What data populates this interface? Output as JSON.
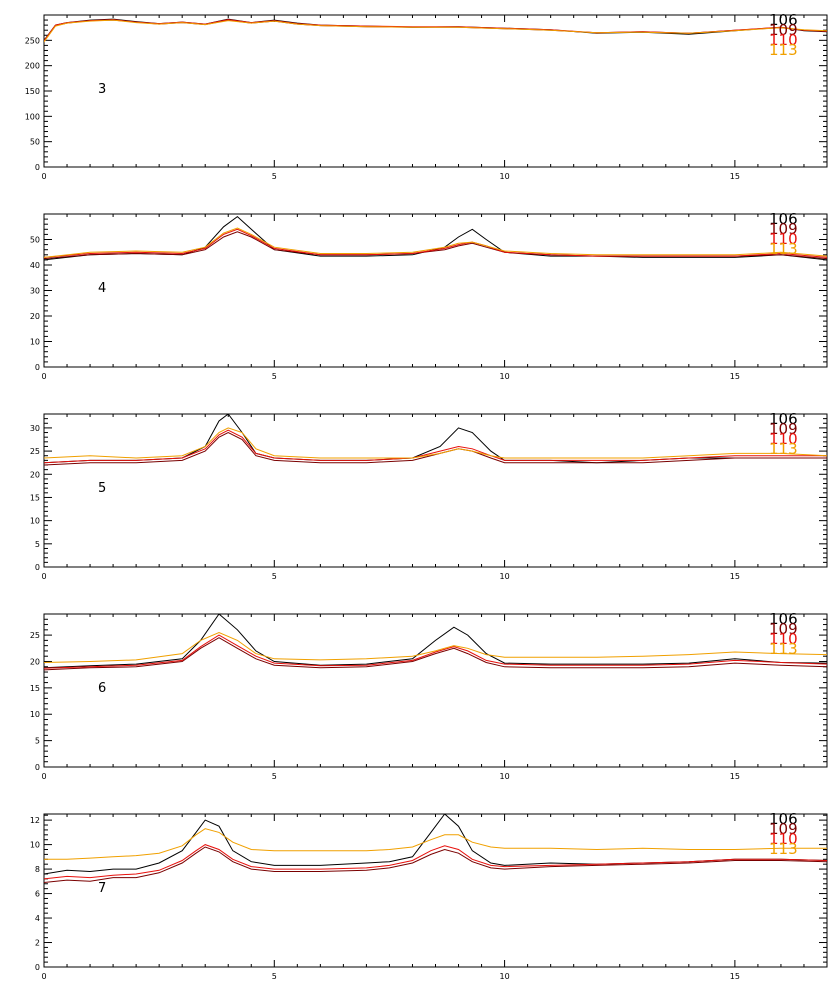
{
  "colors": {
    "background": "#ffffff",
    "axis": "#000000"
  },
  "chart_data": [
    {
      "type": "line",
      "panel_label": "3",
      "xlim": [
        0,
        17
      ],
      "ylim": [
        0,
        300
      ],
      "x_ticks": [
        0,
        5,
        10,
        15
      ],
      "y_ticks": [
        0,
        50,
        100,
        150,
        200,
        250
      ],
      "grid": false,
      "legend_position": "top-right",
      "x": [
        0,
        0.25,
        0.5,
        1,
        1.5,
        2,
        2.5,
        3,
        3.5,
        4,
        4.5,
        5,
        5.5,
        6,
        7,
        8,
        9,
        10,
        11,
        12,
        13,
        14,
        15,
        16,
        16.5,
        17
      ],
      "series": [
        {
          "name": "106",
          "color": "#000000",
          "values": [
            250,
            280,
            285,
            290,
            292,
            287,
            283,
            286,
            282,
            292,
            285,
            290,
            284,
            280,
            278,
            276,
            277,
            274,
            271,
            264,
            266,
            262,
            269,
            276,
            269,
            267
          ]
        },
        {
          "name": "109",
          "color": "#7a0000",
          "values": [
            248,
            279,
            284,
            289,
            290,
            286,
            282,
            285,
            281,
            290,
            284,
            288,
            282,
            279,
            277,
            276,
            276,
            273,
            270,
            265,
            267,
            264,
            270,
            275,
            270,
            268
          ]
        },
        {
          "name": "110",
          "color": "#e8100c",
          "values": [
            249,
            280,
            285,
            289,
            291,
            286,
            283,
            286,
            282,
            291,
            285,
            289,
            283,
            280,
            278,
            277,
            277,
            274,
            271,
            265,
            267,
            264,
            270,
            276,
            270,
            268
          ]
        },
        {
          "name": "113",
          "color": "#f0a000",
          "values": [
            247,
            278,
            284,
            288,
            290,
            285,
            282,
            285,
            281,
            289,
            284,
            288,
            282,
            279,
            277,
            276,
            276,
            273,
            270,
            265,
            266,
            264,
            269,
            275,
            271,
            269
          ]
        }
      ]
    },
    {
      "type": "line",
      "panel_label": "4",
      "xlim": [
        0,
        17
      ],
      "ylim": [
        0,
        60
      ],
      "x_ticks": [
        0,
        5,
        10,
        15
      ],
      "y_ticks": [
        0,
        10,
        20,
        30,
        40,
        50
      ],
      "grid": false,
      "legend_position": "top-right",
      "x": [
        0,
        1,
        2,
        3,
        3.5,
        3.9,
        4.2,
        4.5,
        5,
        6,
        7,
        8,
        8.7,
        9,
        9.3,
        9.6,
        10,
        11,
        12,
        13,
        14,
        15,
        16,
        17
      ],
      "series": [
        {
          "name": "106",
          "color": "#000000",
          "values": [
            42,
            44,
            44.5,
            44,
            47,
            55,
            59,
            54,
            46,
            43.5,
            43.5,
            44,
            47,
            51,
            54,
            50,
            45,
            43.5,
            43.5,
            43,
            43,
            43,
            44,
            42
          ]
        },
        {
          "name": "109",
          "color": "#7a0000",
          "values": [
            42.5,
            44,
            44.5,
            44,
            46,
            51,
            53,
            51,
            46,
            44,
            44,
            44.5,
            46,
            47.5,
            48.5,
            47,
            45,
            44,
            43.5,
            43.5,
            43.5,
            43.5,
            44,
            42.5
          ]
        },
        {
          "name": "110",
          "color": "#e8100c",
          "values": [
            43,
            44.5,
            45,
            44.5,
            46.5,
            52,
            54,
            51.5,
            46.5,
            44,
            44,
            44.5,
            46.5,
            48,
            49,
            47.5,
            45,
            44,
            43.5,
            43.5,
            43.5,
            43.5,
            44.5,
            43
          ]
        },
        {
          "name": "113",
          "color": "#f0a000",
          "values": [
            43,
            45,
            45.5,
            45,
            47,
            52.5,
            54.5,
            52,
            47,
            44.5,
            44.5,
            45,
            47,
            48.5,
            49,
            47.5,
            45.5,
            44.5,
            44,
            44,
            44,
            44,
            45,
            43.5
          ]
        }
      ]
    },
    {
      "type": "line",
      "panel_label": "5",
      "xlim": [
        0,
        17
      ],
      "ylim": [
        0,
        33
      ],
      "x_ticks": [
        0,
        5,
        10,
        15
      ],
      "y_ticks": [
        0,
        5,
        10,
        15,
        20,
        25,
        30
      ],
      "grid": false,
      "legend_position": "top-right",
      "x": [
        0,
        1,
        2,
        3,
        3.5,
        3.8,
        4,
        4.3,
        4.6,
        5,
        6,
        7,
        8,
        8.6,
        9,
        9.3,
        9.7,
        10,
        11,
        12,
        13,
        14,
        15,
        16,
        17
      ],
      "series": [
        {
          "name": "106",
          "color": "#000000",
          "values": [
            22.5,
            23,
            23,
            23.5,
            26,
            31.5,
            33,
            29,
            24.5,
            23.5,
            23,
            23,
            23.5,
            26,
            30,
            29,
            25,
            23,
            23,
            22.5,
            23,
            23.5,
            23.5,
            23.5,
            23.5
          ]
        },
        {
          "name": "109",
          "color": "#7a0000",
          "values": [
            22,
            22.5,
            22.5,
            23,
            25,
            28,
            29,
            27.5,
            24,
            23,
            22.5,
            22.5,
            23,
            24.5,
            25.5,
            25,
            23.5,
            22.5,
            22.5,
            22.5,
            22.5,
            23,
            23.5,
            23.5,
            23.5
          ]
        },
        {
          "name": "110",
          "color": "#e8100c",
          "values": [
            22.5,
            23,
            23,
            23.5,
            25.5,
            28.5,
            29.5,
            28,
            24.5,
            23.5,
            23,
            23,
            23.5,
            25,
            26,
            25.5,
            24,
            23,
            23,
            23,
            23,
            23.5,
            24,
            24,
            24
          ]
        },
        {
          "name": "113",
          "color": "#f0a000",
          "values": [
            23.5,
            24,
            23.5,
            24,
            26,
            29,
            30,
            29,
            25.5,
            24,
            23.5,
            23.5,
            23.5,
            24.5,
            25.5,
            25,
            24,
            23.5,
            23.5,
            23.5,
            23.5,
            24,
            24.5,
            24.5,
            24
          ]
        }
      ]
    },
    {
      "type": "line",
      "panel_label": "6",
      "xlim": [
        0,
        17
      ],
      "ylim": [
        0,
        29
      ],
      "x_ticks": [
        0,
        5,
        10,
        15
      ],
      "y_ticks": [
        0,
        5,
        10,
        15,
        20,
        25
      ],
      "grid": false,
      "legend_position": "top-right",
      "x": [
        0,
        1,
        2,
        3,
        3.4,
        3.8,
        4.2,
        4.6,
        5,
        6,
        7,
        8,
        8.5,
        8.9,
        9.2,
        9.6,
        10,
        11,
        12,
        13,
        14,
        15,
        16,
        17
      ],
      "series": [
        {
          "name": "106",
          "color": "#000000",
          "values": [
            18.8,
            19.2,
            19.5,
            20.5,
            24,
            29,
            26,
            22,
            20,
            19.3,
            19.5,
            20.5,
            24,
            26.5,
            25,
            21.5,
            19.7,
            19.5,
            19.5,
            19.5,
            19.7,
            20.5,
            19.8,
            19.7
          ]
        },
        {
          "name": "109",
          "color": "#7a0000",
          "values": [
            18.4,
            18.8,
            19,
            20,
            22.5,
            24.5,
            22.5,
            20.5,
            19.3,
            18.8,
            19,
            20,
            21.5,
            22.5,
            21.5,
            19.8,
            19,
            18.8,
            18.8,
            18.8,
            19,
            19.7,
            19.3,
            19
          ]
        },
        {
          "name": "110",
          "color": "#e8100c",
          "values": [
            18.7,
            19,
            19.3,
            20.2,
            22.8,
            25,
            23,
            21,
            19.7,
            19.2,
            19.3,
            20.2,
            21.8,
            22.8,
            22,
            20.2,
            19.5,
            19.3,
            19.3,
            19.3,
            19.5,
            20.2,
            19.8,
            19.5
          ]
        },
        {
          "name": "113",
          "color": "#f0a000",
          "values": [
            19.8,
            20,
            20.3,
            21.5,
            24,
            25.5,
            24,
            21.5,
            20.5,
            20.3,
            20.5,
            21,
            22,
            23,
            22.5,
            21.3,
            20.8,
            20.8,
            20.8,
            21,
            21.3,
            21.8,
            21.5,
            21.3
          ]
        }
      ]
    },
    {
      "type": "line",
      "panel_label": "7",
      "xlim": [
        0,
        17
      ],
      "ylim": [
        0,
        12.5
      ],
      "x_ticks": [
        0,
        5,
        10,
        15
      ],
      "y_ticks": [
        0,
        2,
        4,
        6,
        8,
        10,
        12
      ],
      "grid": false,
      "legend_position": "top-right",
      "x": [
        0,
        0.5,
        1,
        1.5,
        2,
        2.5,
        3,
        3.3,
        3.5,
        3.8,
        4.1,
        4.5,
        5,
        6,
        7,
        7.5,
        8,
        8.4,
        8.7,
        9,
        9.3,
        9.7,
        10,
        11,
        12,
        13,
        14,
        15,
        16,
        17
      ],
      "series": [
        {
          "name": "106",
          "color": "#000000",
          "values": [
            7.6,
            7.9,
            7.8,
            8,
            8,
            8.5,
            9.5,
            11,
            12,
            11.5,
            9.5,
            8.6,
            8.3,
            8.3,
            8.5,
            8.6,
            9,
            11,
            12.5,
            11.5,
            9.5,
            8.5,
            8.3,
            8.5,
            8.4,
            8.5,
            8.6,
            8.8,
            8.8,
            8.7
          ]
        },
        {
          "name": "109",
          "color": "#7a0000",
          "values": [
            6.9,
            7.1,
            7,
            7.3,
            7.3,
            7.7,
            8.5,
            9.3,
            9.8,
            9.4,
            8.6,
            8,
            7.8,
            7.8,
            7.9,
            8.1,
            8.5,
            9.2,
            9.6,
            9.3,
            8.6,
            8.1,
            8,
            8.2,
            8.3,
            8.4,
            8.5,
            8.7,
            8.7,
            8.6
          ]
        },
        {
          "name": "110",
          "color": "#e8100c",
          "values": [
            7.2,
            7.4,
            7.3,
            7.5,
            7.6,
            7.9,
            8.7,
            9.5,
            10,
            9.6,
            8.8,
            8.2,
            8,
            8,
            8.1,
            8.3,
            8.7,
            9.5,
            9.9,
            9.6,
            8.8,
            8.3,
            8.2,
            8.3,
            8.4,
            8.5,
            8.6,
            8.8,
            8.8,
            8.7
          ]
        },
        {
          "name": "113",
          "color": "#f0a000",
          "values": [
            8.8,
            8.8,
            8.9,
            9,
            9.1,
            9.3,
            9.9,
            10.8,
            11.3,
            11,
            10.2,
            9.6,
            9.5,
            9.5,
            9.5,
            9.6,
            9.8,
            10.4,
            10.8,
            10.8,
            10.2,
            9.8,
            9.7,
            9.7,
            9.6,
            9.7,
            9.6,
            9.6,
            9.7,
            9.7
          ]
        }
      ]
    }
  ]
}
